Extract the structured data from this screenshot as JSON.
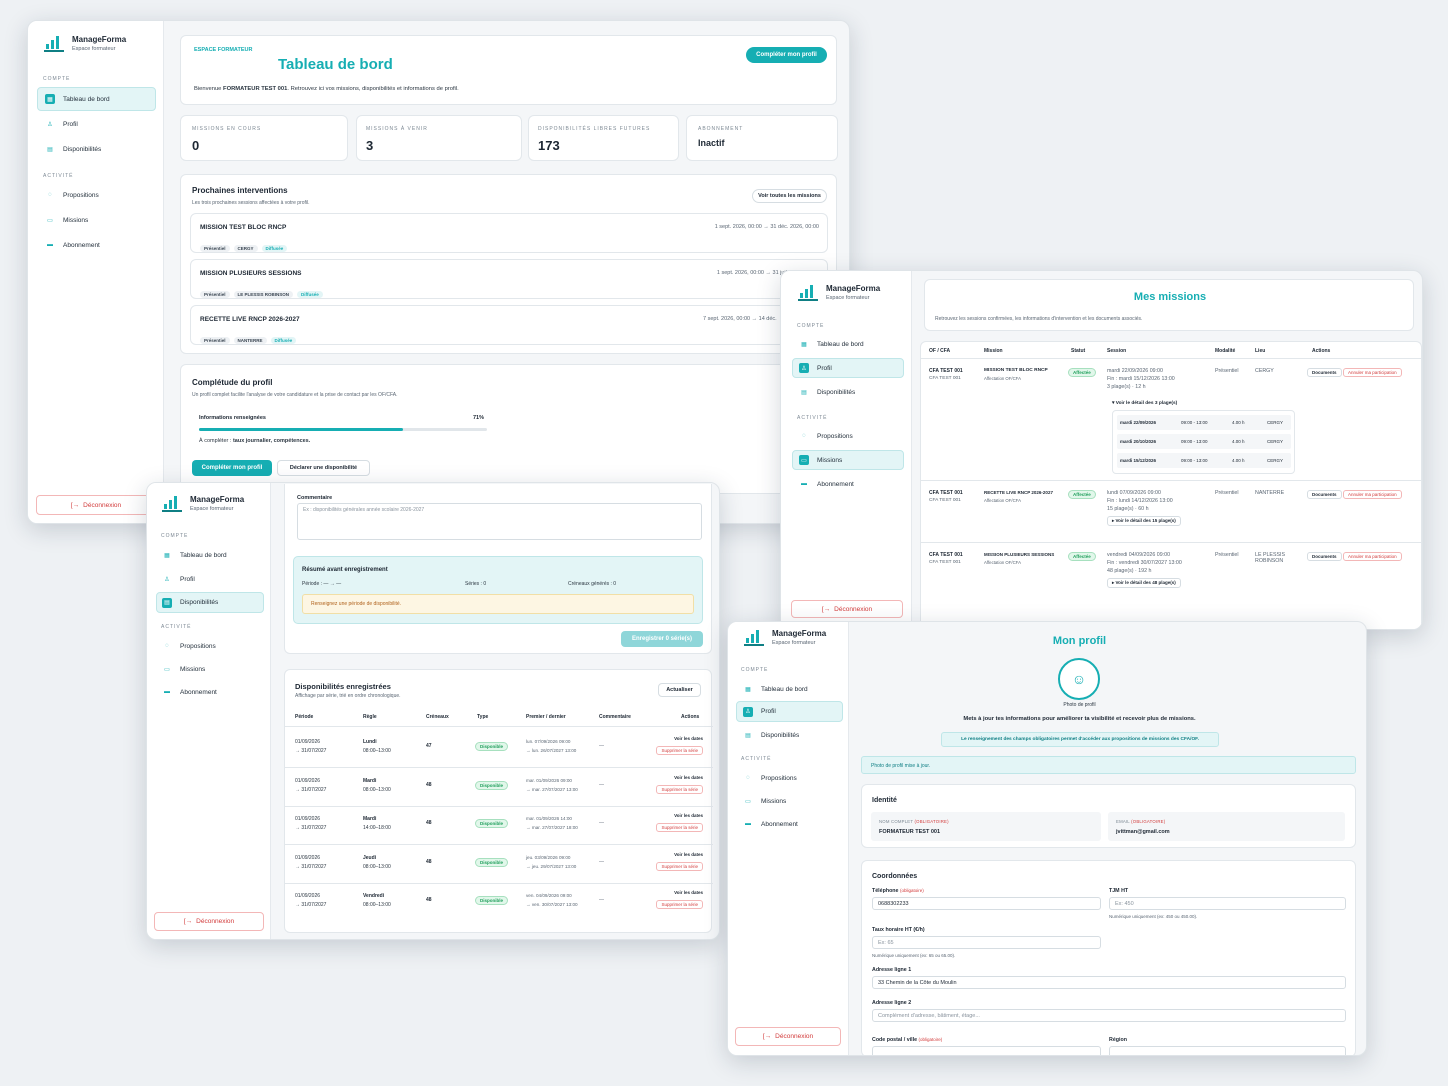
{
  "brand": {
    "name": "ManageForma",
    "sub": "Espace formateur"
  },
  "nav": {
    "compte": "COMPTE",
    "activite": "ACTIVITÉ",
    "dashboard": "Tableau de bord",
    "profil": "Profil",
    "dispos": "Disponibilités",
    "propositions": "Propositions",
    "missions": "Missions",
    "abonnement": "Abonnement",
    "logout": "Déconnexion"
  },
  "dash": {
    "eyebrow": "ESPACE FORMATEUR",
    "title": "Tableau de bord",
    "cta": "Compléter mon profil",
    "welcome_pre": "Bienvenue",
    "welcome_name": "FORMATEUR TEST 001",
    "welcome_post": ". Retrouvez ici vos missions, disponibilités et informations de profil.",
    "stats": [
      {
        "label": "MISSIONS EN COURS",
        "value": "0"
      },
      {
        "label": "MISSIONS À VENIR",
        "value": "3"
      },
      {
        "label": "DISPONIBILITÉS LIBRES FUTURES",
        "value": "173"
      },
      {
        "label": "ABONNEMENT",
        "value": "Inactif"
      }
    ],
    "next_title": "Prochaines interventions",
    "next_sub": "Les trois prochaines sessions affectées à votre profil.",
    "next_btn": "Voir toutes les missions",
    "missions": [
      {
        "name": "MISSION TEST BLOC RNCP",
        "date": "1 sept. 2026, 00:00 → 31 déc. 2026, 00:00",
        "chips": [
          "Présentiel",
          "CERGY",
          "Diffusée"
        ]
      },
      {
        "name": "MISSION PLUSIEURS SESSIONS",
        "date": "1 sept. 2026, 00:00 → 31 juil. 2027, 00:00",
        "chips": [
          "Présentiel",
          "LE PLESSIS ROBINSON",
          "Diffusée"
        ]
      },
      {
        "name": "RECETTE LIVE RNCP 2026-2027",
        "date": "7 sept. 2026, 00:00 → 14 déc.",
        "chips": [
          "Présentiel",
          "NANTERRE",
          "Diffusée"
        ]
      }
    ],
    "compl_title": "Complétude du profil",
    "compl_sub": "Un profil complet facilite l'analyse de votre candidature et la prise de contact par les OF/CFA.",
    "compl_label": "Informations renseignées",
    "compl_pct": "71%",
    "compl_value": 0.71,
    "compl_todo_pre": "À compléter :",
    "compl_todo": "taux journalier, compétences.",
    "btn1": "Compléter mon profil",
    "btn2": "Déclarer une disponibilité"
  },
  "missions": {
    "title": "Mes missions",
    "sub": "Retrouvez les sessions confirmées, les informations d'intervention et les documents associés.",
    "headers": [
      "OF / CFA",
      "Mission",
      "Statut",
      "Session",
      "Modalité",
      "Lieu",
      "Actions"
    ],
    "rows": [
      {
        "of": "CFA TEST 001",
        "of2": "CFA TEST 001",
        "mission": "MISSION TEST BLOC RNCP",
        "aff": "Affectation OF/CFA",
        "status": "Affectée",
        "s1": "mardi 22/09/2026 09:00",
        "s2": "Fin : mardi 15/12/2026 13:00",
        "s3": "3 plage(s) · 12 h",
        "mod": "Présentiel",
        "lieu": "CERGY",
        "doc": "Documents",
        "cancel": "Annuler ma participation",
        "detail": "▾ Voir le détail des 3 plage(s)",
        "slots": [
          [
            "mardi 22/09/2026",
            "09:00 - 13:00",
            "4.00 h",
            "CERGY"
          ],
          [
            "mardi 20/10/2026",
            "09:00 - 13:00",
            "4.00 h",
            "CERGY"
          ],
          [
            "mardi 15/12/2026",
            "09:00 - 13:00",
            "4.00 h",
            "CERGY"
          ]
        ]
      },
      {
        "of": "CFA TEST 001",
        "of2": "CFA TEST 001",
        "mission": "RECETTE LIVE RNCP 2026-2027",
        "aff": "Affectation OF/CFA",
        "status": "Affectée",
        "s1": "lundi 07/09/2026 09:00",
        "s2": "Fin : lundi 14/12/2026 13:00",
        "s3": "15 plage(s) · 60 h",
        "mod": "Présentiel",
        "lieu": "NANTERRE",
        "doc": "Documents",
        "cancel": "Annuler ma participation",
        "detail": "▸ Voir le détail des 15 plage(s)"
      },
      {
        "of": "CFA TEST 001",
        "of2": "CFA TEST 001",
        "mission": "MISSION PLUSIEURS SESSIONS",
        "aff": "Affectation OF/CFA",
        "status": "Affectée",
        "s1": "vendredi 04/09/2026 09:00",
        "s2": "Fin : vendredi 30/07/2027 13:00",
        "s3": "48 plage(s) · 192 h",
        "mod": "Présentiel",
        "lieu": "LE PLESSIS ROBINSON",
        "doc": "Documents",
        "cancel": "Annuler ma participation",
        "detail": "▸ Voir le détail des 48 plage(s)"
      }
    ]
  },
  "dispo": {
    "comment_label": "Commentaire",
    "comment_ph": "Ex : disponibilités générales année scolaire 2026-2027",
    "summary_title": "Résumé avant enregistrement",
    "period": "Période : — → —",
    "series": "Séries : 0",
    "slots": "Créneaux générés : 0",
    "warn": "Renseignez une période de disponibilité.",
    "save": "Enregistrer 0 série(s)",
    "list_title": "Disponibilités enregistrées",
    "list_sub": "Affichage par série, trié en ordre chronologique.",
    "refresh": "Actualiser",
    "headers": [
      "Période",
      "Règle",
      "Créneaux",
      "Type",
      "Premier / dernier",
      "Commentaire",
      "Actions"
    ],
    "rows": [
      {
        "p1": "01/09/2026",
        "p2": "→ 31/07/2027",
        "r1": "Lundi",
        "r2": "08:00–13:00",
        "n": "47",
        "type": "Disponible",
        "f1": "lun. 07/09/2026 09:00",
        "f2": "→ lun. 26/07/2027 13:00",
        "c": "—",
        "a1": "Voir les dates",
        "a2": "Supprimer la série"
      },
      {
        "p1": "01/09/2026",
        "p2": "→ 31/07/2027",
        "r1": "Mardi",
        "r2": "08:00–13:00",
        "n": "48",
        "type": "Disponible",
        "f1": "mar. 01/09/2026 09:00",
        "f2": "→ mar. 27/07/2027 13:00",
        "c": "—",
        "a1": "Voir les dates",
        "a2": "Supprimer la série"
      },
      {
        "p1": "01/09/2026",
        "p2": "→ 31/07/2027",
        "r1": "Mardi",
        "r2": "14:00–18:00",
        "n": "48",
        "type": "Disponible",
        "f1": "mar. 01/09/2026 14:00",
        "f2": "→ mar. 27/07/2027 18:00",
        "c": "—",
        "a1": "Voir les dates",
        "a2": "Supprimer la série"
      },
      {
        "p1": "01/09/2026",
        "p2": "→ 31/07/2027",
        "r1": "Jeudi",
        "r2": "08:00–13:00",
        "n": "48",
        "type": "Disponible",
        "f1": "jeu. 03/09/2026 09:00",
        "f2": "→ jeu. 29/07/2027 13:00",
        "c": "—",
        "a1": "Voir les dates",
        "a2": "Supprimer la série"
      },
      {
        "p1": "01/09/2026",
        "p2": "→ 31/07/2027",
        "r1": "Vendredi",
        "r2": "08:00–13:00",
        "n": "48",
        "type": "Disponible",
        "f1": "ven. 04/09/2026 09:00",
        "f2": "→ ven. 30/07/2027 13:00",
        "c": "—",
        "a1": "Voir les dates",
        "a2": "Supprimer la série"
      }
    ]
  },
  "profil": {
    "title": "Mon profil",
    "photo": "Photo de profil",
    "lead": "Mets à jour tes informations pour améliorer ta visibilité et recevoir plus de missions.",
    "notice": "Le renseignement des champs obligatoires permet d'accéder aux propositions de missions des CFA/OF.",
    "toast": "Photo de profil mise à jour.",
    "identity": "Identité",
    "name_label": "NOM COMPLET",
    "req": "(obligatoire)",
    "name_val": "FORMATEUR TEST 001",
    "email_label": "EMAIL",
    "email_val": "jvittman@gmail.com",
    "coord": "Coordonnées",
    "tel_label": "Téléphone",
    "tel_val": "0688302233",
    "tjm_label": "TJM HT",
    "tjm_ph": "Ex: 450",
    "tjm_hint": "Numérique uniquement (ex: 450 ou 450.00).",
    "th_label": "Taux horaire HT (€/h)",
    "th_ph": "Ex: 65",
    "th_hint": "Numérique uniquement (ex: 65 ou 65.00).",
    "a1_label": "Adresse ligne 1",
    "a1_val": "33 Chemin de la Côte du Moulin",
    "a2_label": "Adresse ligne 2",
    "a2_ph": "Complément d'adresse, bâtiment, étage...",
    "cp_label": "Code postal / ville",
    "region_label": "Région"
  }
}
